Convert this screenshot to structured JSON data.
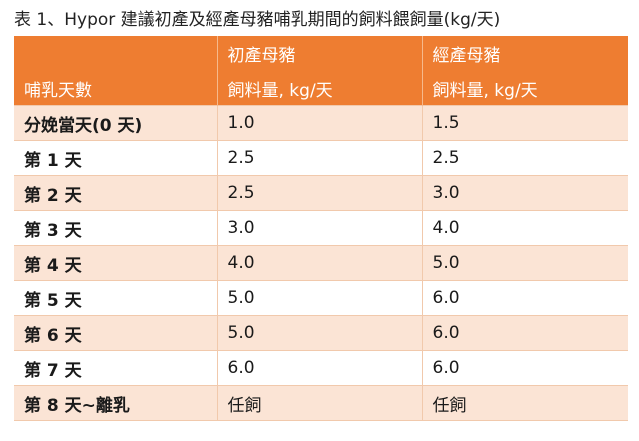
{
  "caption": "表 1、Hypor 建議初產及經產母豬哺乳期間的飼料餵飼量(kg/天)",
  "header": {
    "row1": [
      "",
      "初產母豬",
      "經產母豬"
    ],
    "row2": [
      "哺乳天數",
      "飼料量, kg/天",
      "飼料量, kg/天"
    ]
  },
  "rows": [
    [
      "分娩當天(0 天)",
      "1.0",
      "1.5"
    ],
    [
      "第 1 天",
      "2.5",
      "2.5"
    ],
    [
      "第 2 天",
      "2.5",
      "3.0"
    ],
    [
      "第 3 天",
      "3.0",
      "4.0"
    ],
    [
      "第 4 天",
      "4.0",
      "5.0"
    ],
    [
      "第 5 天",
      "5.0",
      "6.0"
    ],
    [
      "第 6 天",
      "5.0",
      "6.0"
    ],
    [
      "第 7 天",
      "6.0",
      "6.0"
    ],
    [
      "第 8 天~離乳",
      "任飼",
      "任飼"
    ]
  ],
  "colors": {
    "header_bg": "#ee7d31",
    "band_bg": "#fbe4d5",
    "border": "#f1c9ac"
  }
}
